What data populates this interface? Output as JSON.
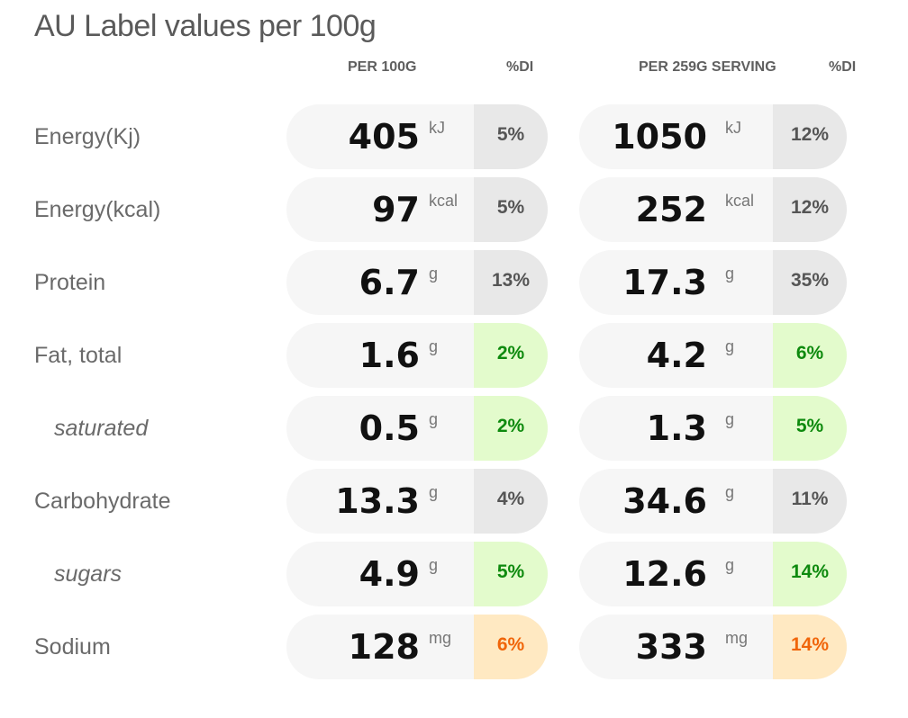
{
  "title": "AU Label values per 100g",
  "headers": {
    "per100": "PER 100G",
    "di1": "%DI",
    "serving": "PER 259G SERVING",
    "di2": "%DI"
  },
  "rows": [
    {
      "label": "Energy(Kj)",
      "sub": false,
      "v100": "405",
      "u100": "kJ",
      "di100": "5%",
      "di100_level": "neutral",
      "vserv": "1050",
      "userv": "kJ",
      "diserv": "12%",
      "diserv_level": "neutral"
    },
    {
      "label": "Energy(kcal)",
      "sub": false,
      "v100": "97",
      "u100": "kcal",
      "di100": "5%",
      "di100_level": "neutral",
      "vserv": "252",
      "userv": "kcal",
      "diserv": "12%",
      "diserv_level": "neutral"
    },
    {
      "label": "Protein",
      "sub": false,
      "v100": "6.7",
      "u100": "g",
      "di100": "13%",
      "di100_level": "neutral",
      "vserv": "17.3",
      "userv": "g",
      "diserv": "35%",
      "diserv_level": "neutral"
    },
    {
      "label": "Fat, total",
      "sub": false,
      "v100": "1.6",
      "u100": "g",
      "di100": "2%",
      "di100_level": "green",
      "vserv": "4.2",
      "userv": "g",
      "diserv": "6%",
      "diserv_level": "green"
    },
    {
      "label": "saturated",
      "sub": true,
      "v100": "0.5",
      "u100": "g",
      "di100": "2%",
      "di100_level": "green",
      "vserv": "1.3",
      "userv": "g",
      "diserv": "5%",
      "diserv_level": "green"
    },
    {
      "label": "Carbohydrate",
      "sub": false,
      "v100": "13.3",
      "u100": "g",
      "di100": "4%",
      "di100_level": "neutral",
      "vserv": "34.6",
      "userv": "g",
      "diserv": "11%",
      "diserv_level": "neutral"
    },
    {
      "label": "sugars",
      "sub": true,
      "v100": "4.9",
      "u100": "g",
      "di100": "5%",
      "di100_level": "green",
      "vserv": "12.6",
      "userv": "g",
      "diserv": "14%",
      "diserv_level": "green"
    },
    {
      "label": "Sodium",
      "sub": false,
      "v100": "128",
      "u100": "mg",
      "di100": "6%",
      "di100_level": "orange",
      "vserv": "333",
      "userv": "mg",
      "diserv": "14%",
      "diserv_level": "orange"
    }
  ],
  "colors": {
    "pill_bg": "#f6f6f6",
    "di_neutral": "#e8e8e8",
    "di_green_bg": "#e3fbcc",
    "di_green_text": "#0e8a0e",
    "di_orange_bg": "#ffe9c2",
    "di_orange_text": "#f0650a"
  }
}
